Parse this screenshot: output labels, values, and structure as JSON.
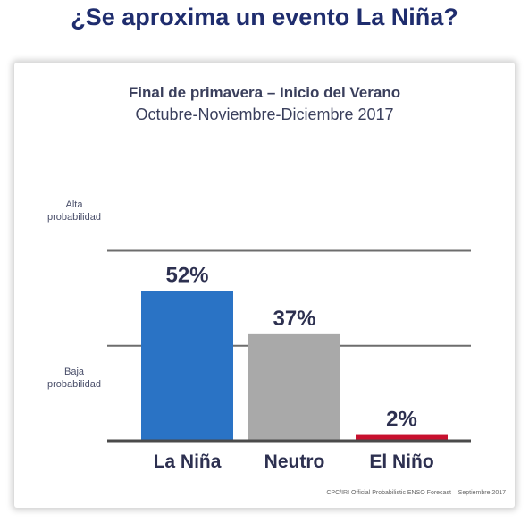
{
  "page_title": "¿Se aproxima un evento La Niña?",
  "chart_data": {
    "type": "bar",
    "title": "Final de primavera – Inicio del Verano",
    "subtitle": "Octubre-Noviembre-Diciembre 2017",
    "categories": [
      "La Niña",
      "Neutro",
      "El Niño"
    ],
    "values": [
      52,
      37,
      2
    ],
    "value_labels": [
      "52%",
      "37%",
      "2%"
    ],
    "colors": [
      "#2a73c5",
      "#a9a9a9",
      "#c8102e"
    ],
    "level_labels": {
      "high_line1": "Alta",
      "high_line2": "probabilidad",
      "low_line1": "Baja",
      "low_line2": "probabilidad"
    },
    "reference_lines": [
      33,
      66
    ],
    "ylim": [
      0,
      100
    ],
    "xlabel": "",
    "ylabel": "",
    "grid": false,
    "legend": "none",
    "source": "CPC/IRI Official Probabilistic ENSO Forecast – Septiembre 2017"
  }
}
